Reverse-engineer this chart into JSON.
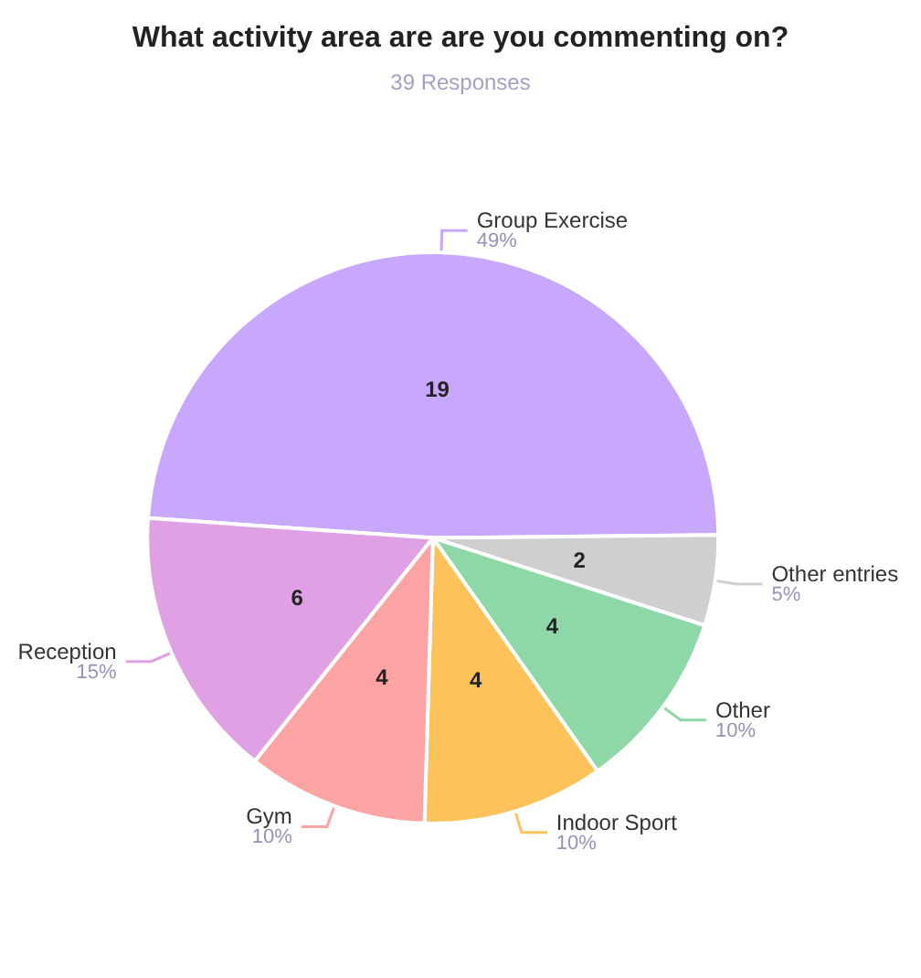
{
  "chart_data": {
    "type": "pie",
    "title": "What activity area are are you commenting on?",
    "subtitle": "39 Responses",
    "categories": [
      "Group Exercise",
      "Other entries",
      "Other",
      "Indoor Sport",
      "Gym",
      "Reception"
    ],
    "values": [
      19,
      2,
      4,
      4,
      4,
      6
    ],
    "annotations": [
      "49%",
      "5%",
      "10%",
      "10%",
      "10%",
      "15%"
    ],
    "colors": [
      "#c8a8fc",
      "#cfcfcf",
      "#8ed8a8",
      "#fdc35a",
      "#fca4a4",
      "#e0a0e4"
    ],
    "data_labels": true,
    "legend": false
  }
}
